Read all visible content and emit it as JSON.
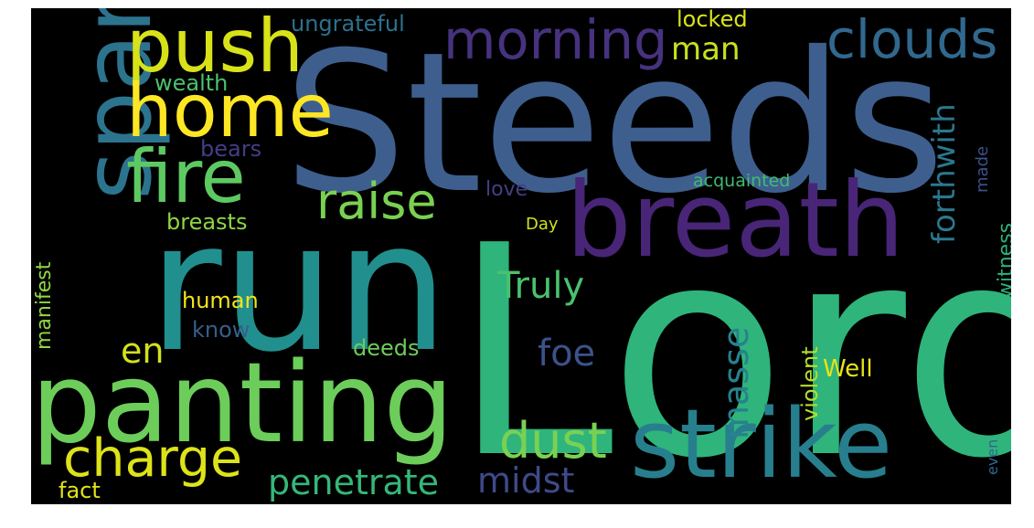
{
  "words": [
    {
      "text": "Lord",
      "color": "#2fb47c"
    },
    {
      "text": "Steeds",
      "color": "#3e5f8e"
    },
    {
      "text": "run",
      "color": "#218f8d"
    },
    {
      "text": "breath",
      "color": "#482576"
    },
    {
      "text": "panting",
      "color": "#6ccd5a"
    },
    {
      "text": "strike",
      "color": "#277f8e"
    },
    {
      "text": "sparks",
      "color": "#2c738e"
    },
    {
      "text": "push",
      "color": "#d8e219"
    },
    {
      "text": "home",
      "color": "#fde725"
    },
    {
      "text": "fire",
      "color": "#5ec962"
    },
    {
      "text": "morning",
      "color": "#46327e"
    },
    {
      "text": "clouds",
      "color": "#31688e"
    },
    {
      "text": "charge",
      "color": "#dde318"
    },
    {
      "text": "raise",
      "color": "#7ad151"
    },
    {
      "text": "dust",
      "color": "#7ad151"
    },
    {
      "text": "penetrate",
      "color": "#35b779"
    },
    {
      "text": "midst",
      "color": "#3e4a89"
    },
    {
      "text": "Truly",
      "color": "#4ac16d"
    },
    {
      "text": "foe",
      "color": "#3b528b"
    },
    {
      "text": "en",
      "color": "#d2e21b"
    },
    {
      "text": "masse",
      "color": "#26828e"
    },
    {
      "text": "man",
      "color": "#c8e020"
    },
    {
      "text": "forthwith",
      "color": "#2a788e"
    },
    {
      "text": "violent",
      "color": "#b5de2b"
    },
    {
      "text": "Well",
      "color": "#e5e419"
    },
    {
      "text": "witness",
      "color": "#2db27d"
    },
    {
      "text": "manifest",
      "color": "#90d743"
    },
    {
      "text": "ungrateful",
      "color": "#2c718e"
    },
    {
      "text": "locked",
      "color": "#dae319"
    },
    {
      "text": "wealth",
      "color": "#4ac16d"
    },
    {
      "text": "bears",
      "color": "#433e85"
    },
    {
      "text": "made",
      "color": "#3b528b"
    },
    {
      "text": "acquainted",
      "color": "#3fbc73"
    },
    {
      "text": "love",
      "color": "#423f85"
    },
    {
      "text": "breasts",
      "color": "#8ed645"
    },
    {
      "text": "Day",
      "color": "#d0e11c"
    },
    {
      "text": "human",
      "color": "#f1e51d"
    },
    {
      "text": "know",
      "color": "#355f8d"
    },
    {
      "text": "deeds",
      "color": "#6ccd5a"
    },
    {
      "text": "fact",
      "color": "#e2e418"
    },
    {
      "text": "even",
      "color": "#31688e"
    }
  ]
}
